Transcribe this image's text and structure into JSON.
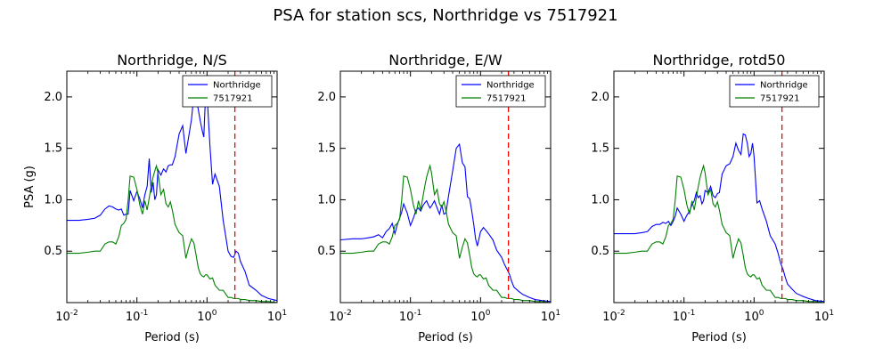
{
  "figure": {
    "suptitle": "PSA for station scs, Northridge vs 7517921"
  },
  "colors": {
    "series_a": "#0000ff",
    "series_b": "#008000",
    "marker_line": "#ff0000",
    "axes": "#000000"
  },
  "chart_data": [
    {
      "type": "line",
      "title": "Northridge, N/S",
      "xlabel": "Period (s)",
      "ylabel": "PSA (g)",
      "xscale": "log",
      "xlim": [
        0.01,
        10
      ],
      "ylim": [
        0,
        2.25
      ],
      "xticks": [
        0.01,
        0.1,
        1,
        10
      ],
      "xtick_labels": [
        {
          "base": "10",
          "exp": "-2"
        },
        {
          "base": "10",
          "exp": "-1"
        },
        {
          "base": "10",
          "exp": "0"
        },
        {
          "base": "10",
          "exp": "1"
        }
      ],
      "yticks": [
        0.5,
        1.0,
        1.5,
        2.0
      ],
      "ytick_labels": [
        "0.5",
        "1.0",
        "1.5",
        "2.0"
      ],
      "legend": {
        "placement": "top-right"
      },
      "vertical_marker_x": 2.5,
      "series": [
        {
          "name": "Northridge",
          "color": "#0000ff",
          "x": [
            0.01,
            0.015,
            0.02,
            0.025,
            0.03,
            0.035,
            0.04,
            0.045,
            0.05,
            0.055,
            0.06,
            0.065,
            0.07,
            0.075,
            0.08,
            0.09,
            0.1,
            0.11,
            0.12,
            0.13,
            0.14,
            0.15,
            0.16,
            0.17,
            0.18,
            0.19,
            0.2,
            0.22,
            0.24,
            0.26,
            0.28,
            0.3,
            0.32,
            0.35,
            0.4,
            0.45,
            0.5,
            0.55,
            0.6,
            0.65,
            0.7,
            0.75,
            0.8,
            0.85,
            0.9,
            0.95,
            1.0,
            1.1,
            1.2,
            1.3,
            1.5,
            1.7,
            2.0,
            2.2,
            2.4,
            2.6,
            2.8,
            3.0,
            3.5,
            4.0,
            5.0,
            6.0,
            7.5,
            10.0
          ],
          "y": [
            0.8,
            0.8,
            0.81,
            0.82,
            0.85,
            0.91,
            0.94,
            0.93,
            0.91,
            0.9,
            0.91,
            0.85,
            0.86,
            0.86,
            1.09,
            0.99,
            1.08,
            1.01,
            0.92,
            1.05,
            1.13,
            1.4,
            1.07,
            1.17,
            1.0,
            1.05,
            1.29,
            1.24,
            1.3,
            1.27,
            1.33,
            1.34,
            1.34,
            1.42,
            1.64,
            1.72,
            1.45,
            1.62,
            1.78,
            2.02,
            1.98,
            1.88,
            1.77,
            1.68,
            1.61,
            1.99,
            2.03,
            1.53,
            1.15,
            1.25,
            1.13,
            0.8,
            0.5,
            0.45,
            0.44,
            0.5,
            0.48,
            0.4,
            0.3,
            0.17,
            0.12,
            0.07,
            0.04,
            0.02
          ]
        },
        {
          "name": "7517921",
          "color": "#008000",
          "x": [
            0.01,
            0.015,
            0.02,
            0.025,
            0.03,
            0.035,
            0.04,
            0.045,
            0.05,
            0.055,
            0.06,
            0.065,
            0.07,
            0.075,
            0.08,
            0.09,
            0.1,
            0.11,
            0.12,
            0.13,
            0.14,
            0.15,
            0.16,
            0.17,
            0.18,
            0.19,
            0.2,
            0.22,
            0.24,
            0.26,
            0.28,
            0.3,
            0.32,
            0.35,
            0.4,
            0.45,
            0.5,
            0.55,
            0.6,
            0.65,
            0.7,
            0.75,
            0.8,
            0.85,
            0.9,
            0.95,
            1.0,
            1.1,
            1.2,
            1.3,
            1.5,
            1.7,
            2.0,
            2.2,
            2.4,
            2.6,
            2.8,
            3.0,
            3.5,
            4.0,
            5.0,
            6.0,
            7.5,
            10.0
          ],
          "y": [
            0.48,
            0.48,
            0.49,
            0.5,
            0.5,
            0.57,
            0.59,
            0.59,
            0.57,
            0.64,
            0.75,
            0.77,
            0.81,
            1.0,
            1.23,
            1.22,
            1.1,
            0.95,
            0.86,
            0.99,
            0.9,
            1.02,
            1.13,
            1.22,
            1.28,
            1.33,
            1.26,
            1.05,
            1.1,
            0.96,
            0.93,
            0.98,
            0.9,
            0.76,
            0.68,
            0.65,
            0.43,
            0.54,
            0.62,
            0.58,
            0.46,
            0.34,
            0.28,
            0.26,
            0.25,
            0.27,
            0.27,
            0.23,
            0.24,
            0.17,
            0.12,
            0.12,
            0.05,
            0.05,
            0.04,
            0.04,
            0.04,
            0.03,
            0.03,
            0.02,
            0.02,
            0.01,
            0.01,
            0.0
          ]
        }
      ]
    },
    {
      "type": "line",
      "title": "Northridge, E/W",
      "xlabel": "Period (s)",
      "xscale": "log",
      "xlim": [
        0.01,
        10
      ],
      "ylim": [
        0,
        2.25
      ],
      "xticks": [
        0.01,
        0.1,
        1,
        10
      ],
      "xtick_labels": [
        {
          "base": "10",
          "exp": "-2"
        },
        {
          "base": "10",
          "exp": "-1"
        },
        {
          "base": "10",
          "exp": "0"
        },
        {
          "base": "10",
          "exp": "1"
        }
      ],
      "yticks": [
        0.5,
        1.0,
        1.5,
        2.0
      ],
      "ytick_labels": [
        "0.5",
        "1.0",
        "1.5",
        "2.0"
      ],
      "legend": {
        "placement": "top-right"
      },
      "vertical_marker_x": 2.5,
      "series": [
        {
          "name": "Northridge",
          "color": "#0000ff",
          "x": [
            0.01,
            0.015,
            0.02,
            0.025,
            0.03,
            0.035,
            0.04,
            0.045,
            0.05,
            0.055,
            0.06,
            0.065,
            0.07,
            0.075,
            0.08,
            0.09,
            0.1,
            0.11,
            0.12,
            0.13,
            0.14,
            0.15,
            0.16,
            0.17,
            0.18,
            0.19,
            0.2,
            0.22,
            0.24,
            0.26,
            0.28,
            0.3,
            0.32,
            0.35,
            0.4,
            0.45,
            0.5,
            0.55,
            0.6,
            0.65,
            0.7,
            0.75,
            0.8,
            0.85,
            0.9,
            0.95,
            1.0,
            1.1,
            1.2,
            1.3,
            1.5,
            1.7,
            2.0,
            2.2,
            2.4,
            2.6,
            2.8,
            3.0,
            3.5,
            4.0,
            5.0,
            6.0,
            7.5,
            10.0
          ],
          "y": [
            0.61,
            0.62,
            0.62,
            0.63,
            0.64,
            0.66,
            0.63,
            0.69,
            0.72,
            0.77,
            0.67,
            0.76,
            0.82,
            0.88,
            0.96,
            0.87,
            0.75,
            0.82,
            0.9,
            0.92,
            0.89,
            0.94,
            0.97,
            0.99,
            0.95,
            0.92,
            0.94,
            0.99,
            0.92,
            0.86,
            0.95,
            0.86,
            0.87,
            1.04,
            1.28,
            1.5,
            1.54,
            1.36,
            1.32,
            1.03,
            1.01,
            0.89,
            0.76,
            0.62,
            0.55,
            0.62,
            0.69,
            0.73,
            0.7,
            0.67,
            0.61,
            0.51,
            0.44,
            0.37,
            0.32,
            0.27,
            0.2,
            0.15,
            0.11,
            0.08,
            0.05,
            0.03,
            0.02,
            0.01
          ]
        },
        {
          "name": "7517921",
          "color": "#008000",
          "x": [
            0.01,
            0.015,
            0.02,
            0.025,
            0.03,
            0.035,
            0.04,
            0.045,
            0.05,
            0.055,
            0.06,
            0.065,
            0.07,
            0.075,
            0.08,
            0.09,
            0.1,
            0.11,
            0.12,
            0.13,
            0.14,
            0.15,
            0.16,
            0.17,
            0.18,
            0.19,
            0.2,
            0.22,
            0.24,
            0.26,
            0.28,
            0.3,
            0.32,
            0.35,
            0.4,
            0.45,
            0.5,
            0.55,
            0.6,
            0.65,
            0.7,
            0.75,
            0.8,
            0.85,
            0.9,
            0.95,
            1.0,
            1.1,
            1.2,
            1.3,
            1.5,
            1.7,
            2.0,
            2.2,
            2.4,
            2.6,
            2.8,
            3.0,
            3.5,
            4.0,
            5.0,
            6.0,
            7.5,
            10.0
          ],
          "y": [
            0.48,
            0.48,
            0.49,
            0.5,
            0.5,
            0.57,
            0.59,
            0.59,
            0.57,
            0.64,
            0.75,
            0.77,
            0.81,
            1.0,
            1.23,
            1.22,
            1.1,
            0.95,
            0.86,
            0.99,
            0.9,
            1.02,
            1.13,
            1.22,
            1.28,
            1.33,
            1.26,
            1.05,
            1.1,
            0.96,
            0.93,
            0.98,
            0.9,
            0.76,
            0.68,
            0.65,
            0.43,
            0.54,
            0.62,
            0.58,
            0.46,
            0.34,
            0.28,
            0.26,
            0.25,
            0.27,
            0.27,
            0.23,
            0.24,
            0.17,
            0.12,
            0.12,
            0.05,
            0.05,
            0.04,
            0.04,
            0.04,
            0.03,
            0.03,
            0.02,
            0.02,
            0.01,
            0.01,
            0.0
          ]
        }
      ]
    },
    {
      "type": "line",
      "title": "Northridge, rotd50",
      "xlabel": "Period (s)",
      "xscale": "log",
      "xlim": [
        0.01,
        10
      ],
      "ylim": [
        0,
        2.25
      ],
      "xticks": [
        0.01,
        0.1,
        1,
        10
      ],
      "xtick_labels": [
        {
          "base": "10",
          "exp": "-2"
        },
        {
          "base": "10",
          "exp": "-1"
        },
        {
          "base": "10",
          "exp": "0"
        },
        {
          "base": "10",
          "exp": "1"
        }
      ],
      "yticks": [
        0.5,
        1.0,
        1.5,
        2.0
      ],
      "ytick_labels": [
        "0.5",
        "1.0",
        "1.5",
        "2.0"
      ],
      "legend": {
        "placement": "top-right"
      },
      "vertical_marker_x": 2.5,
      "series": [
        {
          "name": "Northridge",
          "color": "#0000ff",
          "x": [
            0.01,
            0.015,
            0.02,
            0.025,
            0.03,
            0.035,
            0.04,
            0.045,
            0.05,
            0.055,
            0.06,
            0.065,
            0.07,
            0.075,
            0.08,
            0.09,
            0.1,
            0.11,
            0.12,
            0.13,
            0.14,
            0.15,
            0.16,
            0.17,
            0.18,
            0.19,
            0.2,
            0.22,
            0.24,
            0.26,
            0.28,
            0.3,
            0.32,
            0.35,
            0.4,
            0.45,
            0.5,
            0.55,
            0.6,
            0.65,
            0.7,
            0.75,
            0.8,
            0.85,
            0.9,
            0.95,
            1.0,
            1.1,
            1.2,
            1.3,
            1.5,
            1.7,
            2.0,
            2.2,
            2.4,
            2.6,
            2.8,
            3.0,
            3.5,
            4.0,
            5.0,
            6.0,
            7.5,
            10.0
          ],
          "y": [
            0.67,
            0.67,
            0.67,
            0.68,
            0.69,
            0.74,
            0.76,
            0.76,
            0.78,
            0.77,
            0.79,
            0.75,
            0.79,
            0.84,
            0.92,
            0.86,
            0.79,
            0.85,
            0.89,
            0.95,
            0.99,
            1.07,
            1.02,
            1.04,
            0.96,
            0.99,
            1.09,
            1.07,
            1.13,
            1.04,
            1.02,
            1.06,
            1.07,
            1.25,
            1.33,
            1.35,
            1.42,
            1.55,
            1.48,
            1.44,
            1.64,
            1.63,
            1.55,
            1.42,
            1.45,
            1.55,
            1.42,
            0.97,
            0.99,
            0.91,
            0.79,
            0.65,
            0.57,
            0.48,
            0.38,
            0.32,
            0.24,
            0.18,
            0.13,
            0.09,
            0.06,
            0.04,
            0.02,
            0.01
          ]
        },
        {
          "name": "7517921",
          "color": "#008000",
          "x": [
            0.01,
            0.015,
            0.02,
            0.025,
            0.03,
            0.035,
            0.04,
            0.045,
            0.05,
            0.055,
            0.06,
            0.065,
            0.07,
            0.075,
            0.08,
            0.09,
            0.1,
            0.11,
            0.12,
            0.13,
            0.14,
            0.15,
            0.16,
            0.17,
            0.18,
            0.19,
            0.2,
            0.22,
            0.24,
            0.26,
            0.28,
            0.3,
            0.32,
            0.35,
            0.4,
            0.45,
            0.5,
            0.55,
            0.6,
            0.65,
            0.7,
            0.75,
            0.8,
            0.85,
            0.9,
            0.95,
            1.0,
            1.1,
            1.2,
            1.3,
            1.5,
            1.7,
            2.0,
            2.2,
            2.4,
            2.6,
            2.8,
            3.0,
            3.5,
            4.0,
            5.0,
            6.0,
            7.5,
            10.0
          ],
          "y": [
            0.48,
            0.48,
            0.49,
            0.5,
            0.5,
            0.57,
            0.59,
            0.59,
            0.57,
            0.64,
            0.75,
            0.77,
            0.81,
            1.0,
            1.23,
            1.22,
            1.1,
            0.95,
            0.86,
            0.99,
            0.9,
            1.02,
            1.13,
            1.22,
            1.28,
            1.33,
            1.26,
            1.05,
            1.1,
            0.96,
            0.93,
            0.98,
            0.9,
            0.76,
            0.68,
            0.65,
            0.43,
            0.54,
            0.62,
            0.58,
            0.46,
            0.34,
            0.28,
            0.26,
            0.25,
            0.27,
            0.27,
            0.23,
            0.24,
            0.17,
            0.12,
            0.12,
            0.05,
            0.05,
            0.04,
            0.04,
            0.04,
            0.03,
            0.03,
            0.02,
            0.02,
            0.01,
            0.01,
            0.0
          ]
        }
      ]
    }
  ]
}
